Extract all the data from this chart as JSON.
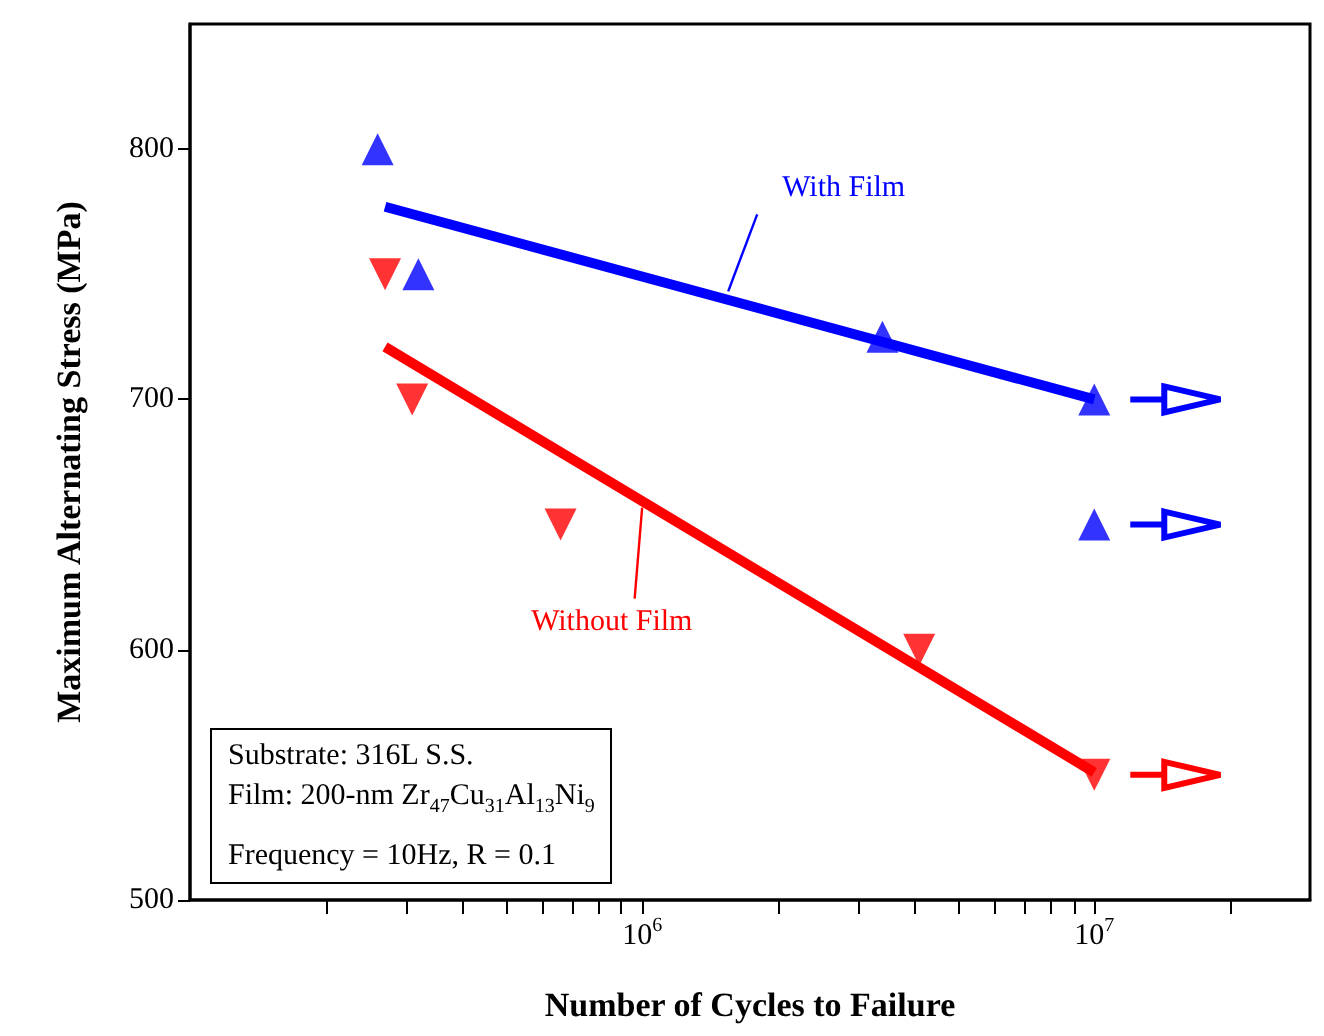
{
  "chart_data": {
    "type": "scatter",
    "xlabel": "Number of Cycles to Failure",
    "ylabel": "Maximum Alternating Stress (MPa)",
    "log": "x",
    "grid": false,
    "xlim": [
      100000,
      30000000
    ],
    "xticks": [
      {
        "value": 200000,
        "label": null
      },
      {
        "value": 300000,
        "label": null
      },
      {
        "value": 400000,
        "label": null
      },
      {
        "value": 500000,
        "label": null
      },
      {
        "value": 600000,
        "label": null
      },
      {
        "value": 700000,
        "label": null
      },
      {
        "value": 800000,
        "label": null
      },
      {
        "value": 900000,
        "label": null
      },
      {
        "value": 1000000,
        "label": "10$^{6}$"
      },
      {
        "value": 2000000,
        "label": null
      },
      {
        "value": 3000000,
        "label": null
      },
      {
        "value": 4000000,
        "label": null
      },
      {
        "value": 5000000,
        "label": null
      },
      {
        "value": 6000000,
        "label": null
      },
      {
        "value": 7000000,
        "label": null
      },
      {
        "value": 8000000,
        "label": null
      },
      {
        "value": 9000000,
        "label": null
      },
      {
        "value": 10000000,
        "label": "10$^{7}$"
      },
      {
        "value": 20000000,
        "label": null
      }
    ],
    "ylim": [
      500,
      850
    ],
    "yticks": [
      500,
      600,
      700,
      800
    ],
    "series": [
      {
        "color": "#0000ff",
        "marker": "triangle",
        "x": [
          260000,
          320000,
          3400000,
          10000000,
          10000000
        ],
        "values": [
          800,
          750,
          725,
          700,
          650
        ]
      },
      {
        "color": "#ff0000",
        "marker": "triangle-down",
        "x": [
          270000,
          310000,
          660000,
          4100000,
          10000000
        ],
        "values": [
          750,
          700,
          650,
          600,
          550
        ]
      },
      {
        "type": "line",
        "color": "#0000ff",
        "marker": "none",
        "x": [
          270000,
          10000000
        ],
        "values": [
          777,
          700
        ]
      },
      {
        "type": "line",
        "color": "#ff0000",
        "marker": "none",
        "x": [
          270000,
          10000000
        ],
        "values": [
          721,
          551
        ]
      }
    ],
    "annotations": [
      {
        "text": "With Film",
        "x": 1550000,
        "y": 740
      },
      {
        "text": "Without Film",
        "x": 1000000,
        "y": 660
      },
      "Substrate: 316L S.S.",
      "Film: 200-nm Zr$_{47}$Cu$_{31}$Al$_{13}$Ni$_{9}$",
      "Frequency = 10Hz, R = 0.1"
    ]
  }
}
